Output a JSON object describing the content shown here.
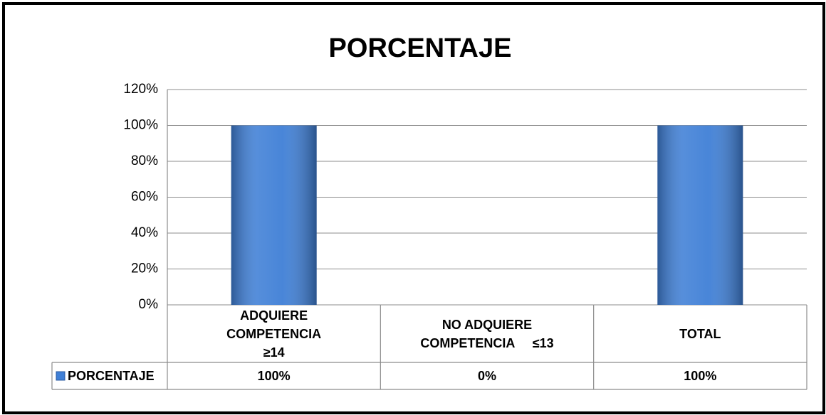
{
  "chart_data": {
    "type": "bar",
    "title": "PORCENTAJE",
    "categories": [
      "ADQUIERE\nCOMPETENCIA\n≥14",
      "NO ADQUIERE\nCOMPETENCIA     ≤13",
      "TOTAL"
    ],
    "series": [
      {
        "name": "PORCENTAJE",
        "color": "#3f7fd6",
        "values": [
          100,
          0,
          100
        ],
        "value_labels": [
          "100%",
          "0%",
          "100%"
        ]
      }
    ],
    "ylim": [
      0,
      120
    ],
    "yticks": [
      {
        "value": 0,
        "label": "0%"
      },
      {
        "value": 20,
        "label": "20%"
      },
      {
        "value": 40,
        "label": "40%"
      },
      {
        "value": 60,
        "label": "60%"
      },
      {
        "value": 80,
        "label": "80%"
      },
      {
        "value": 100,
        "label": "100%"
      },
      {
        "value": 120,
        "label": "120%"
      }
    ],
    "grid": true
  }
}
